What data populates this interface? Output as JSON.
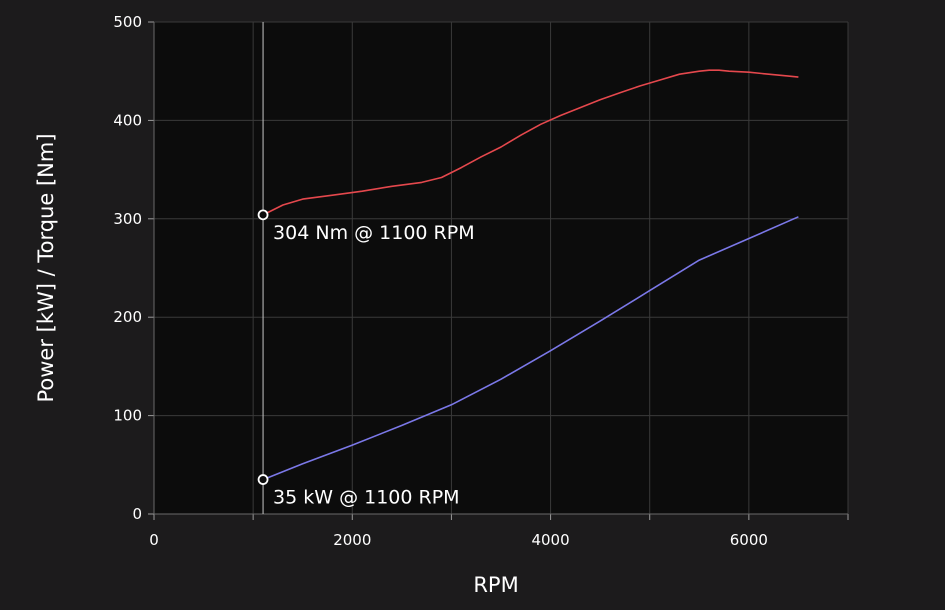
{
  "chart_data": {
    "type": "line",
    "title": "",
    "xlabel": "RPM",
    "ylabel": "Power [kW] / Torque [Nm]",
    "xlim": [
      0,
      7000
    ],
    "ylim": [
      0,
      500
    ],
    "x_ticks": [
      0,
      2000,
      4000,
      6000
    ],
    "x_tick_labels": [
      "0",
      "2000",
      "4000",
      "6000"
    ],
    "y_ticks": [
      0,
      100,
      200,
      300,
      400,
      500
    ],
    "y_tick_labels": [
      "0",
      "100",
      "200",
      "300",
      "400",
      "500"
    ],
    "grid": true,
    "legend": "none",
    "cursor_rpm": 1100,
    "series": [
      {
        "key": "torque",
        "color": "#e5484d",
        "x": [
          1100,
          1300,
          1500,
          1800,
          2100,
          2400,
          2700,
          2900,
          3100,
          3300,
          3500,
          3700,
          3900,
          4100,
          4300,
          4500,
          4700,
          4900,
          5100,
          5300,
          5500,
          5600,
          5700,
          5800,
          6000,
          6200,
          6400,
          6500
        ],
        "y": [
          304,
          314,
          320,
          324,
          328,
          333,
          337,
          342,
          352,
          363,
          373,
          385,
          396,
          405,
          413,
          421,
          428,
          435,
          441,
          447,
          450,
          451,
          451,
          450,
          449,
          447,
          445,
          444
        ]
      },
      {
        "key": "power",
        "color": "#7b78e8",
        "x": [
          1100,
          1500,
          2000,
          2500,
          3000,
          3500,
          4000,
          4500,
          5000,
          5500,
          6000,
          6500
        ],
        "y": [
          35,
          51,
          70,
          90,
          111,
          137,
          166,
          196,
          227,
          258,
          280,
          302
        ]
      }
    ],
    "annotations": [
      {
        "key": "torque",
        "x": 1100,
        "y": 304,
        "text": "304 Nm @ 1100 RPM"
      },
      {
        "key": "power",
        "x": 1100,
        "y": 35,
        "text": "35 kW @ 1100 RPM"
      }
    ]
  }
}
